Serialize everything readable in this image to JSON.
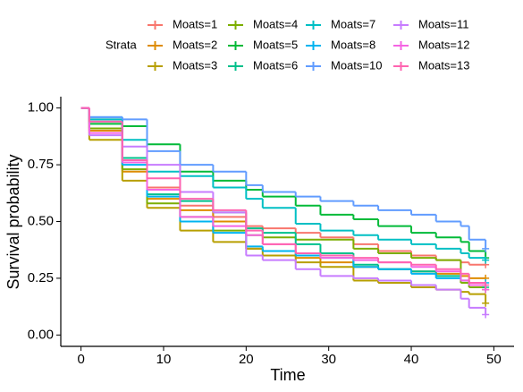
{
  "chart_data": {
    "type": "step",
    "x_label": "Time",
    "y_label": "Survival probability",
    "legend_title": "Strata",
    "xlim": [
      -2.45,
      52.45
    ],
    "ylim": [
      -0.05,
      1.05
    ],
    "xticks": [
      0,
      10,
      20,
      30,
      40,
      50
    ],
    "yticks": [
      {
        "value": 0,
        "label": "0.00"
      },
      {
        "value": 0.25,
        "label": "0.25"
      },
      {
        "value": 0.5,
        "label": "0.50"
      },
      {
        "value": 0.75,
        "label": "0.75"
      },
      {
        "value": 1,
        "label": "1.00"
      }
    ],
    "x": [
      0,
      1,
      5,
      8,
      12,
      16,
      20,
      22,
      26,
      29,
      33,
      36,
      40,
      43,
      46,
      47,
      49
    ],
    "series": [
      {
        "name": "Moats=1",
        "color": "#F8766D",
        "values": [
          1,
          0.95,
          0.78,
          0.65,
          0.57,
          0.52,
          0.48,
          0.47,
          0.45,
          0.43,
          0.4,
          0.37,
          0.35,
          0.33,
          0.32,
          0.31,
          0.31
        ]
      },
      {
        "name": "Moats=2",
        "color": "#DE8C00",
        "values": [
          1,
          0.9,
          0.72,
          0.6,
          0.55,
          0.5,
          0.38,
          0.37,
          0.34,
          0.32,
          0.3,
          0.29,
          0.28,
          0.27,
          0.26,
          0.25,
          0.25
        ]
      },
      {
        "name": "Moats=3",
        "color": "#B79F00",
        "values": [
          1,
          0.86,
          0.68,
          0.56,
          0.46,
          0.41,
          0.38,
          0.35,
          0.32,
          0.3,
          0.24,
          0.23,
          0.21,
          0.2,
          0.19,
          0.18,
          0.14
        ]
      },
      {
        "name": "Moats=4",
        "color": "#7CAE00",
        "values": [
          1,
          0.91,
          0.73,
          0.58,
          0.52,
          0.46,
          0.44,
          0.43,
          0.42,
          0.42,
          0.38,
          0.36,
          0.34,
          0.33,
          0.23,
          0.21,
          0.2
        ]
      },
      {
        "name": "Moats=5",
        "color": "#00BA38",
        "values": [
          1,
          0.93,
          0.92,
          0.84,
          0.72,
          0.68,
          0.64,
          0.61,
          0.57,
          0.53,
          0.51,
          0.48,
          0.45,
          0.43,
          0.41,
          0.37,
          0.34
        ]
      },
      {
        "name": "Moats=6",
        "color": "#00C08B",
        "values": [
          1,
          0.94,
          0.78,
          0.62,
          0.59,
          0.54,
          0.47,
          0.45,
          0.4,
          0.36,
          0.31,
          0.29,
          0.28,
          0.26,
          0.24,
          0.22,
          0.21
        ]
      },
      {
        "name": "Moats=7",
        "color": "#00BFC4",
        "values": [
          1,
          0.95,
          0.86,
          0.72,
          0.7,
          0.65,
          0.6,
          0.56,
          0.49,
          0.46,
          0.44,
          0.42,
          0.4,
          0.38,
          0.36,
          0.34,
          0.33
        ]
      },
      {
        "name": "Moats=8",
        "color": "#00B4F0",
        "values": [
          1,
          0.96,
          0.75,
          0.61,
          0.5,
          0.45,
          0.39,
          0.37,
          0.35,
          0.34,
          0.3,
          0.29,
          0.27,
          0.25,
          0.24,
          0.23,
          0.23
        ]
      },
      {
        "name": "Moats=10",
        "color": "#619CFF",
        "values": [
          1,
          0.96,
          0.95,
          0.81,
          0.75,
          0.72,
          0.66,
          0.63,
          0.61,
          0.59,
          0.57,
          0.55,
          0.53,
          0.5,
          0.48,
          0.42,
          0.38
        ]
      },
      {
        "name": "Moats=11",
        "color": "#C77CFF",
        "values": [
          1,
          0.88,
          0.83,
          0.75,
          0.63,
          0.54,
          0.35,
          0.33,
          0.29,
          0.26,
          0.25,
          0.24,
          0.22,
          0.2,
          0.16,
          0.12,
          0.09
        ]
      },
      {
        "name": "Moats=12",
        "color": "#F564E3",
        "values": [
          1,
          0.89,
          0.76,
          0.64,
          0.52,
          0.48,
          0.44,
          0.4,
          0.36,
          0.34,
          0.33,
          0.32,
          0.3,
          0.28,
          0.24,
          0.22,
          0.2
        ]
      },
      {
        "name": "Moats=13",
        "color": "#FF64B0",
        "values": [
          1,
          0.94,
          0.77,
          0.69,
          0.6,
          0.55,
          0.46,
          0.4,
          0.36,
          0.35,
          0.34,
          0.32,
          0.31,
          0.29,
          0.27,
          0.23,
          0.22
        ]
      }
    ]
  }
}
